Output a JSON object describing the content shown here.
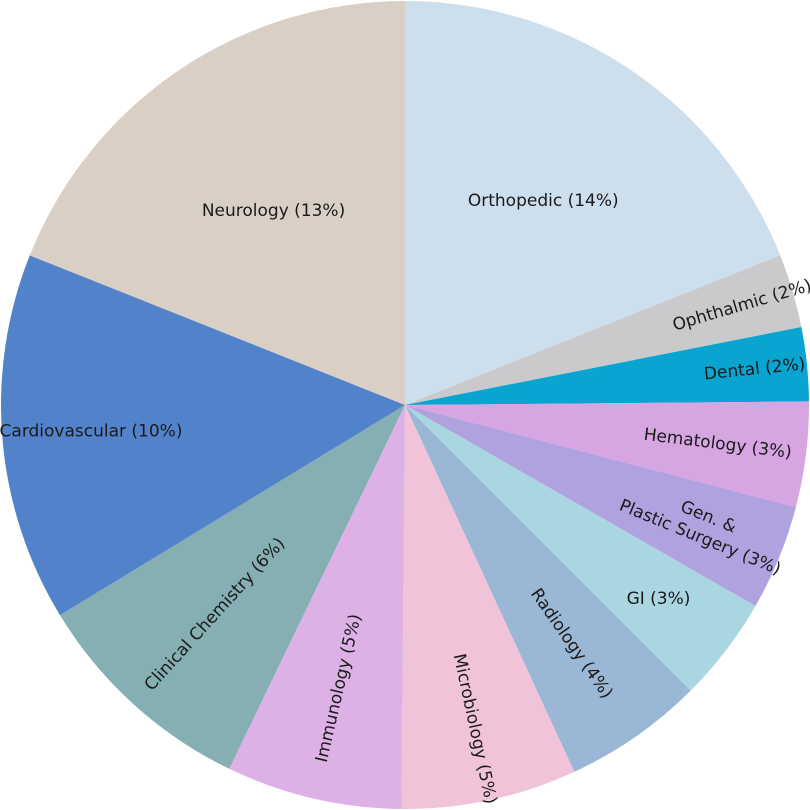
{
  "chart_data": {
    "type": "pie",
    "slices": [
      {
        "label": "Orthopedic (14%)",
        "color": "#cddfed"
      },
      {
        "label": "Ophthalmic (2%)",
        "color": "#cacacd"
      },
      {
        "label": "Dental (2%)",
        "color": "#0aa4d0"
      },
      {
        "label": "Hematology (3%)",
        "color": "#d6a5e2"
      },
      {
        "label": "Gen. &",
        "label2": "Plastic Surgery (3%)",
        "color": "#b0a2de"
      },
      {
        "label": "GI (3%)",
        "color": "#a9d6e0"
      },
      {
        "label": "Radiology (4%)",
        "color": "#9ab8d5"
      },
      {
        "label": "Microbiology (5%)",
        "color": "#f1c3d8"
      },
      {
        "label": "Immunology (5%)",
        "color": "#deb1e6"
      },
      {
        "label": "Clinical Chemistry (6%)",
        "color": "#85afb3"
      },
      {
        "label": "Cardiovascular (10%)",
        "color": "#5282c9"
      },
      {
        "label": "Neurology (13%)",
        "color": "#d9cfc5"
      }
    ],
    "values": [
      13.5,
      2.1,
      2.1,
      3.0,
      3.0,
      3.0,
      4.0,
      5.0,
      5.0,
      6.5,
      10.5,
      13.5
    ]
  }
}
